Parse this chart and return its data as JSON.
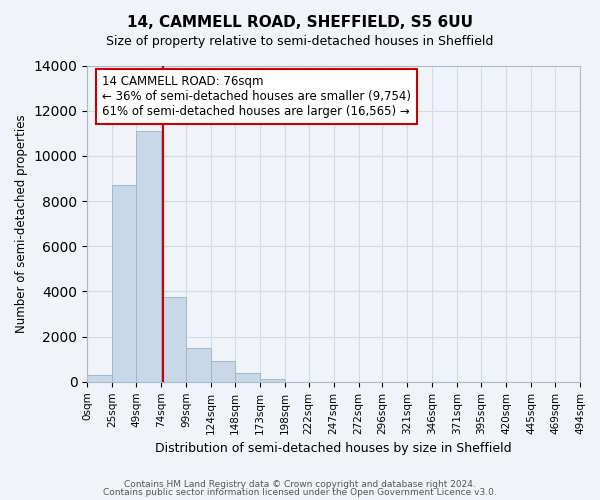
{
  "title": "14, CAMMELL ROAD, SHEFFIELD, S5 6UU",
  "subtitle": "Size of property relative to semi-detached houses in Sheffield",
  "xlabel": "Distribution of semi-detached houses by size in Sheffield",
  "ylabel": "Number of semi-detached properties",
  "bar_edges": [
    0,
    25,
    49,
    74,
    99,
    124,
    148,
    173,
    198,
    222,
    247,
    272,
    296,
    321,
    346,
    371,
    395,
    420,
    445,
    469,
    494
  ],
  "bar_heights": [
    300,
    8700,
    11100,
    3750,
    1500,
    900,
    400,
    130,
    0,
    0,
    0,
    0,
    0,
    0,
    0,
    0,
    0,
    0,
    0,
    0
  ],
  "bar_color": "#c8d8e8",
  "bar_edge_color": "#a0b8cc",
  "property_size": 76,
  "vline_color": "#cc0000",
  "annotation_title": "14 CAMMELL ROAD: 76sqm",
  "annotation_line1": "← 36% of semi-detached houses are smaller (9,754)",
  "annotation_line2": "61% of semi-detached houses are larger (16,565) →",
  "annotation_box_color": "#ffffff",
  "annotation_box_edge": "#cc0000",
  "ylim": [
    0,
    14000
  ],
  "xlim": [
    0,
    494
  ],
  "tick_labels": [
    "0sqm",
    "25sqm",
    "49sqm",
    "74sqm",
    "99sqm",
    "124sqm",
    "148sqm",
    "173sqm",
    "198sqm",
    "222sqm",
    "247sqm",
    "272sqm",
    "296sqm",
    "321sqm",
    "346sqm",
    "371sqm",
    "395sqm",
    "420sqm",
    "445sqm",
    "469sqm",
    "494sqm"
  ],
  "tick_positions": [
    0,
    25,
    49,
    74,
    99,
    124,
    148,
    173,
    198,
    222,
    247,
    272,
    296,
    321,
    346,
    371,
    395,
    420,
    445,
    469,
    494
  ],
  "footer_line1": "Contains HM Land Registry data © Crown copyright and database right 2024.",
  "footer_line2": "Contains public sector information licensed under the Open Government Licence v3.0.",
  "grid_color": "#d0dce8",
  "background_color": "#f0f4f8"
}
